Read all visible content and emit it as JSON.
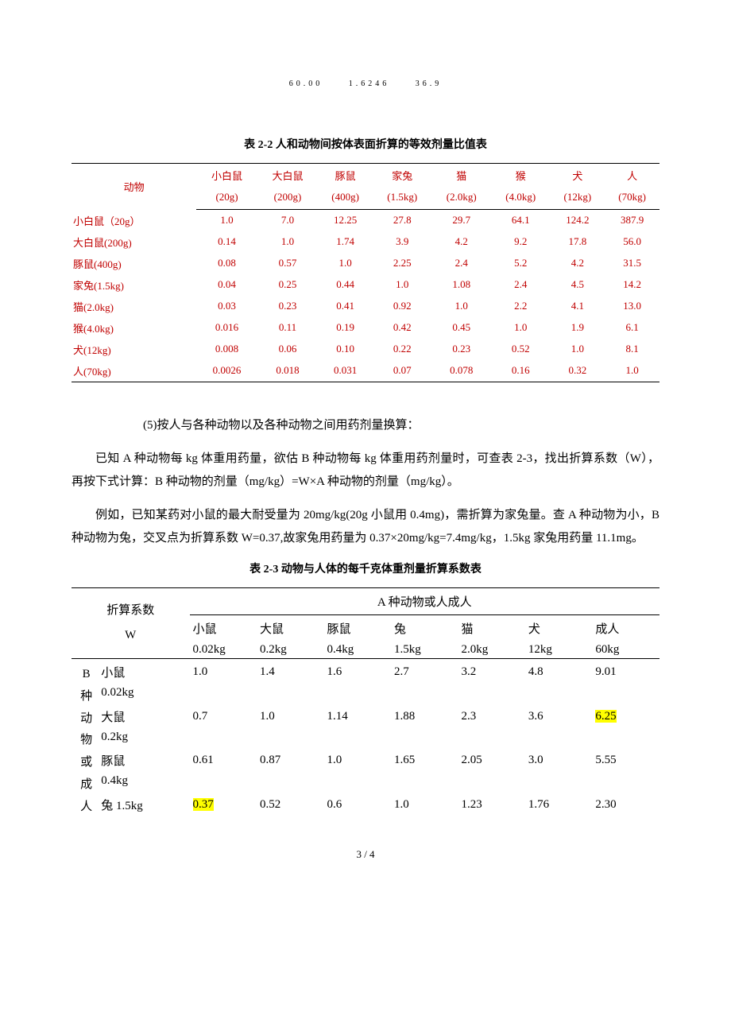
{
  "topLine": {
    "a": "60.00",
    "b": "1.6246",
    "c": "36.9"
  },
  "table22": {
    "caption": "表 2-2   人和动物间按体表面折算的等效剂量比值表",
    "rowHeaderLabel": "动物",
    "cols": [
      {
        "name": "小白鼠",
        "wt": "(20g)",
        "key": "c0"
      },
      {
        "name": "大白鼠",
        "wt": "(200g)",
        "key": "c1"
      },
      {
        "name": "豚鼠",
        "wt": "(400g)",
        "key": "c2"
      },
      {
        "name": "家兔",
        "wt": "(1.5kg)",
        "key": "c3"
      },
      {
        "name": "猫",
        "wt": "(2.0kg)",
        "key": "c4"
      },
      {
        "name": "猴",
        "wt": "(4.0kg)",
        "key": "c5"
      },
      {
        "name": "犬",
        "wt": "(12kg)",
        "key": "c6"
      },
      {
        "name": "人",
        "wt": "(70kg)",
        "key": "c7"
      }
    ],
    "rows": [
      {
        "label": "小白鼠（20g）",
        "v": [
          "1.0",
          "7.0",
          "12.25",
          "27.8",
          "29.7",
          "64.1",
          "124.2",
          "387.9"
        ]
      },
      {
        "label": "大白鼠(200g)",
        "v": [
          "0.14",
          "1.0",
          "1.74",
          "3.9",
          "4.2",
          "9.2",
          "17.8",
          "56.0"
        ]
      },
      {
        "label": "豚鼠(400g)",
        "v": [
          "0.08",
          "0.57",
          "1.0",
          "2.25",
          "2.4",
          "5.2",
          "4.2",
          "31.5"
        ]
      },
      {
        "label": "家兔(1.5kg)",
        "v": [
          "0.04",
          "0.25",
          "0.44",
          "1.0",
          "1.08",
          "2.4",
          "4.5",
          "14.2"
        ]
      },
      {
        "label": "猫(2.0kg)",
        "v": [
          "0.03",
          "0.23",
          "0.41",
          "0.92",
          "1.0",
          "2.2",
          "4.1",
          "13.0"
        ]
      },
      {
        "label": "猴(4.0kg)",
        "v": [
          "0.016",
          "0.11",
          "0.19",
          "0.42",
          "0.45",
          "1.0",
          "1.9",
          "6.1"
        ]
      },
      {
        "label": "犬(12kg)",
        "v": [
          "0.008",
          "0.06",
          "0.10",
          "0.22",
          "0.23",
          "0.52",
          "1.0",
          "8.1"
        ]
      },
      {
        "label": "人(70kg)",
        "v": [
          "0.0026",
          "0.018",
          "0.031",
          "0.07",
          "0.078",
          "0.16",
          "0.32",
          "1.0"
        ]
      }
    ]
  },
  "paragraphs": {
    "p0": "(5)按人与各种动物以及各种动物之间用药剂量换算：",
    "p1": "已知 A 种动物每 kg 体重用药量，欲估 B 种动物每 kg 体重用药剂量时，可查表 2-3，找出折算系数（W），再按下式计算：B 种动物的剂量（mg/kg）=W×A 种动物的剂量（mg/kg）。",
    "p2": "例如，已知某药对小鼠的最大耐受量为 20mg/kg(20g 小鼠用 0.4mg)，需折算为家兔量。查 A 种动物为小，B 种动物为兔，交叉点为折算系数 W=0.37,故家兔用药量为 0.37×20mg/kg=7.4mg/kg，1.5kg 家兔用药量 11.1mg。"
  },
  "table23": {
    "caption": "表 2-3   动物与人体的每千克体重剂量折算系数表",
    "wLabel1": "折算系数",
    "wLabel2": "W",
    "groupHeader": "A 种动物或人成人",
    "vertical": [
      "B",
      "种",
      "动",
      "物",
      "或",
      "成",
      "人"
    ],
    "cols": [
      {
        "name": "小鼠",
        "wt": "0.02kg"
      },
      {
        "name": "大鼠",
        "wt": "0.2kg"
      },
      {
        "name": "豚鼠",
        "wt": "0.4kg"
      },
      {
        "name": "兔",
        "wt": "1.5kg"
      },
      {
        "name": "猫",
        "wt": "2.0kg"
      },
      {
        "name": "犬",
        "wt": "12kg"
      },
      {
        "name": "成人",
        "wt": "60kg"
      }
    ],
    "rows": [
      {
        "label": "小鼠",
        "sub": "0.02kg",
        "v": [
          "1.0",
          "1.4",
          "1.6",
          "2.7",
          "3.2",
          "4.8",
          "9.01"
        ],
        "hl": []
      },
      {
        "label": "大鼠",
        "sub": "0.2kg",
        "v": [
          "0.7",
          "1.0",
          "1.14",
          "1.88",
          "2.3",
          "3.6",
          "6.25"
        ],
        "hl": [
          6
        ]
      },
      {
        "label": "豚鼠",
        "sub": "0.4kg",
        "v": [
          "0.61",
          "0.87",
          "1.0",
          "1.65",
          "2.05",
          "3.0",
          "5.55"
        ],
        "hl": []
      },
      {
        "label": "兔 1.5kg",
        "sub": "",
        "v": [
          "0.37",
          "0.52",
          "0.6",
          "1.0",
          "1.23",
          "1.76",
          "2.30"
        ],
        "hl": [
          0
        ]
      }
    ]
  },
  "footer": "3 / 4",
  "colors": {
    "red": "#c00000",
    "highlight": "#ffff00"
  }
}
